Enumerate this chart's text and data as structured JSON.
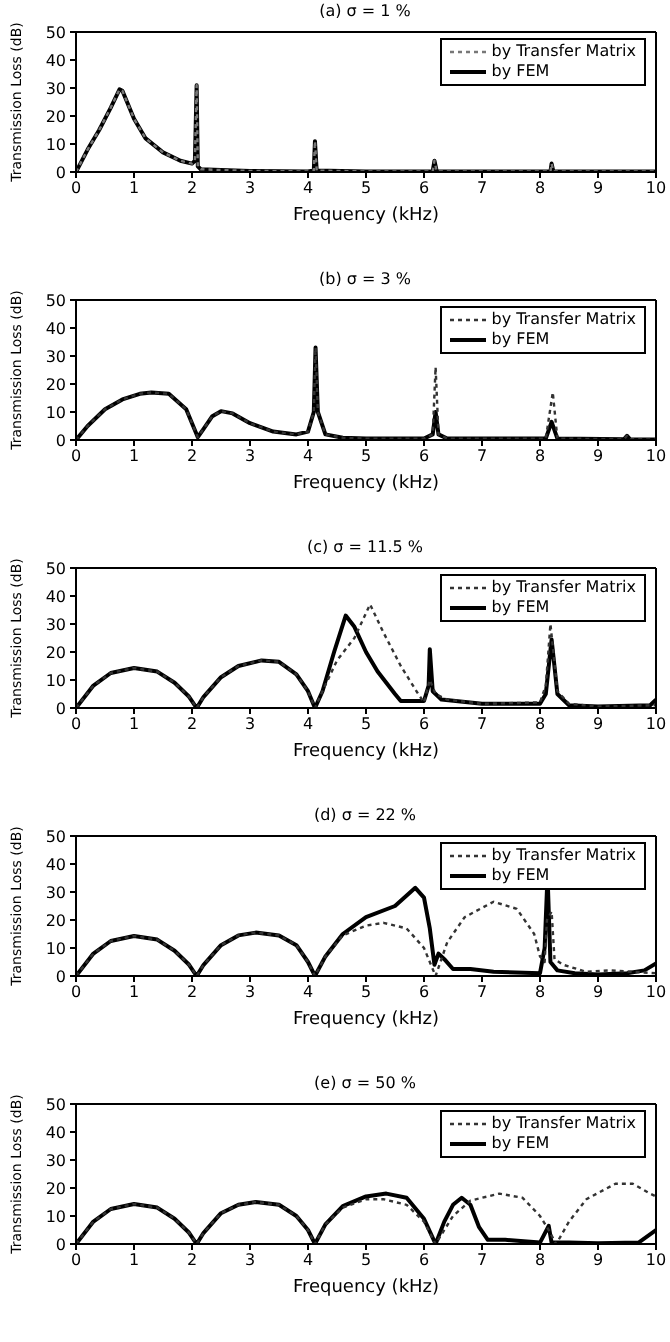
{
  "chart_data": [
    {
      "type": "line",
      "title": "(a) σ = 1 %",
      "xlabel": "Frequency (kHz)",
      "ylabel": "Transmission Loss (dB)",
      "xlim": [
        0,
        10
      ],
      "xticks": [
        0,
        1,
        2,
        3,
        4,
        5,
        6,
        7,
        8,
        9,
        10
      ],
      "ylim": [
        0,
        50
      ],
      "yticks": [
        0,
        10,
        20,
        30,
        40,
        50
      ],
      "legend": "top right",
      "series": [
        {
          "name": "by Transfer Matrix",
          "color": "#777777",
          "line_style": "dotted",
          "x": [
            0,
            0.2,
            0.4,
            0.6,
            0.75,
            0.8,
            1.0,
            1.2,
            1.5,
            1.8,
            2.0,
            2.05,
            2.08,
            2.1,
            2.15,
            2.5,
            3,
            4,
            4.1,
            4.12,
            4.15,
            5,
            6.15,
            6.18,
            6.22,
            8.18,
            8.2,
            8.23,
            10
          ],
          "values": [
            0,
            8,
            15,
            23,
            29.5,
            29,
            19,
            12,
            7,
            4,
            3,
            4,
            31,
            2,
            1,
            0.7,
            0.4,
            0.2,
            0.5,
            11,
            0.5,
            0.2,
            0.2,
            4,
            0.2,
            0.2,
            3,
            0.2,
            0.2
          ]
        },
        {
          "name": "by FEM",
          "color": "#000000",
          "line_style": "solid",
          "x": [
            0,
            0.2,
            0.4,
            0.6,
            0.75,
            0.8,
            1.0,
            1.2,
            1.5,
            1.8,
            2.0,
            2.05,
            2.08,
            2.1,
            2.15,
            2.5,
            3,
            4,
            4.1,
            4.12,
            4.15,
            5,
            6.15,
            6.18,
            6.22,
            8.18,
            8.2,
            8.23,
            10
          ],
          "values": [
            0,
            8,
            15,
            23,
            29.5,
            29,
            19,
            12,
            7,
            4,
            3,
            4,
            31,
            2,
            1,
            0.7,
            0.4,
            0.2,
            0.5,
            11,
            0.5,
            0.2,
            0.2,
            4,
            0.2,
            0.2,
            3,
            0.2,
            0.2
          ]
        }
      ]
    },
    {
      "type": "line",
      "title": "(b) σ = 3 %",
      "xlabel": "Frequency (kHz)",
      "ylabel": "Transmission Loss (dB)",
      "xlim": [
        0,
        10
      ],
      "xticks": [
        0,
        1,
        2,
        3,
        4,
        5,
        6,
        7,
        8,
        9,
        10
      ],
      "ylim": [
        0,
        50
      ],
      "yticks": [
        0,
        10,
        20,
        30,
        40,
        50
      ],
      "legend": "top right",
      "series": [
        {
          "name": "by Transfer Matrix",
          "color": "#333333",
          "line_style": "dotted",
          "x": [
            0,
            0.2,
            0.5,
            0.8,
            1.1,
            1.3,
            1.6,
            1.9,
            2.0,
            2.1,
            2.2,
            2.35,
            2.5,
            2.7,
            3.0,
            3.4,
            3.8,
            4.0,
            4.1,
            4.13,
            4.17,
            4.3,
            4.6,
            5,
            6,
            6.15,
            6.2,
            6.25,
            6.4,
            8.1,
            8.22,
            8.3,
            9.45,
            9.5,
            9.55,
            10
          ],
          "values": [
            0,
            5,
            11,
            14.5,
            16.5,
            17,
            16.5,
            11,
            6,
            1,
            4,
            8.5,
            10.3,
            9.5,
            6,
            3,
            2,
            3,
            10,
            33,
            10,
            2,
            0.8,
            0.5,
            0.5,
            2,
            26,
            2,
            0.5,
            0.5,
            17,
            0.5,
            0.3,
            1.5,
            0.3,
            0.2
          ]
        },
        {
          "name": "by FEM",
          "color": "#000000",
          "line_style": "solid",
          "x": [
            0,
            0.2,
            0.5,
            0.8,
            1.1,
            1.3,
            1.6,
            1.9,
            2.0,
            2.1,
            2.2,
            2.35,
            2.5,
            2.7,
            3.0,
            3.4,
            3.8,
            4.0,
            4.1,
            4.13,
            4.17,
            4.3,
            4.6,
            5,
            6,
            6.15,
            6.2,
            6.25,
            6.4,
            8.1,
            8.2,
            8.3,
            9.45,
            9.5,
            9.55,
            10
          ],
          "values": [
            0,
            5,
            11,
            14.5,
            16.5,
            17,
            16.5,
            11,
            6,
            1,
            4,
            8.5,
            10.3,
            9.5,
            6,
            3,
            2,
            3,
            10,
            33,
            10,
            2,
            0.8,
            0.5,
            0.5,
            2,
            10,
            2,
            0.5,
            0.5,
            6.5,
            0.5,
            0.3,
            1.5,
            0.3,
            0.2
          ]
        }
      ]
    },
    {
      "type": "line",
      "title": "(c) σ = 11.5  %",
      "xlabel": "Frequency (kHz)",
      "ylabel": "Transmission Loss (dB)",
      "xlim": [
        0,
        10
      ],
      "xticks": [
        0,
        1,
        2,
        3,
        4,
        5,
        6,
        7,
        8,
        9,
        10
      ],
      "ylim": [
        0,
        50
      ],
      "yticks": [
        0,
        10,
        20,
        30,
        40,
        50
      ],
      "legend": "top right",
      "series": [
        {
          "name": "by Transfer Matrix",
          "color": "#333333",
          "line_style": "dotted",
          "x": [
            0,
            0.3,
            0.6,
            1.0,
            1.4,
            1.7,
            1.95,
            2.08,
            2.2,
            2.5,
            2.8,
            3.2,
            3.5,
            3.8,
            4.0,
            4.12,
            4.25,
            4.5,
            4.8,
            5.07,
            5.3,
            5.6,
            5.9,
            6.0,
            6.1,
            6.2,
            6.4,
            7,
            8.0,
            8.1,
            8.18,
            8.3,
            8.5,
            9,
            10
          ],
          "values": [
            0,
            8,
            12.5,
            14.3,
            13,
            9,
            4,
            0,
            4,
            11,
            15,
            17,
            16.5,
            12,
            6,
            0,
            6,
            17,
            25,
            37,
            27,
            15,
            5,
            2,
            10,
            5,
            3,
            1.5,
            2,
            8,
            30,
            6,
            1.5,
            0.5,
            1
          ]
        },
        {
          "name": "by FEM",
          "color": "#000000",
          "line_style": "solid",
          "x": [
            0,
            0.3,
            0.6,
            1.0,
            1.4,
            1.7,
            1.95,
            2.08,
            2.2,
            2.5,
            2.8,
            3.2,
            3.5,
            3.8,
            4.0,
            4.12,
            4.25,
            4.45,
            4.65,
            4.8,
            5.0,
            5.2,
            5.5,
            5.6,
            6.0,
            6.08,
            6.1,
            6.15,
            6.3,
            7,
            8.0,
            8.1,
            8.2,
            8.3,
            8.5,
            9,
            9.9,
            10
          ],
          "values": [
            0,
            8,
            12.5,
            14.3,
            13,
            9,
            4,
            0,
            4,
            11,
            15,
            17,
            16.5,
            12,
            6,
            0,
            6,
            20,
            33,
            29,
            20,
            13,
            5,
            2.5,
            2.5,
            8,
            21,
            6,
            3,
            1.5,
            1.5,
            5,
            24.5,
            5,
            1,
            0.5,
            1,
            3
          ]
        }
      ]
    },
    {
      "type": "line",
      "title": "(d) σ = 22 %",
      "xlabel": "Frequency (kHz)",
      "ylabel": "Transmission Loss (dB)",
      "xlim": [
        0,
        10
      ],
      "xticks": [
        0,
        1,
        2,
        3,
        4,
        5,
        6,
        7,
        8,
        9,
        10
      ],
      "ylim": [
        0,
        50
      ],
      "yticks": [
        0,
        10,
        20,
        30,
        40,
        50
      ],
      "legend": "top right",
      "series": [
        {
          "name": "by Transfer Matrix",
          "color": "#333333",
          "line_style": "dotted",
          "x": [
            0,
            0.3,
            0.6,
            1.0,
            1.4,
            1.7,
            1.95,
            2.08,
            2.2,
            2.5,
            2.8,
            3.1,
            3.5,
            3.8,
            4.0,
            4.12,
            4.3,
            4.6,
            5.0,
            5.3,
            5.7,
            6.0,
            6.2,
            6.4,
            6.7,
            7.2,
            7.6,
            7.9,
            8.0,
            8.08,
            8.12,
            8.2,
            8.25,
            8.4,
            8.8,
            9.2,
            9.6,
            10
          ],
          "values": [
            0,
            8,
            12.5,
            14.3,
            13,
            9,
            4,
            0,
            4,
            11,
            14.5,
            15.5,
            14.5,
            11,
            5,
            0,
            7,
            14.5,
            18,
            19,
            17,
            10,
            0,
            12,
            21,
            26.5,
            24,
            15,
            7,
            5,
            20,
            23,
            6,
            4,
            1.5,
            2,
            1.5,
            1
          ]
        },
        {
          "name": "by FEM",
          "color": "#000000",
          "line_style": "solid",
          "x": [
            0,
            0.3,
            0.6,
            1.0,
            1.4,
            1.7,
            1.95,
            2.08,
            2.2,
            2.5,
            2.8,
            3.1,
            3.5,
            3.8,
            4.0,
            4.12,
            4.3,
            4.6,
            5.0,
            5.5,
            5.85,
            6.0,
            6.1,
            6.18,
            6.25,
            6.35,
            6.5,
            6.8,
            7.2,
            8.0,
            8.08,
            8.13,
            8.18,
            8.3,
            8.6,
            9.0,
            9.5,
            9.8,
            10
          ],
          "values": [
            0,
            8,
            12.5,
            14.3,
            13,
            9,
            4,
            0,
            4,
            11,
            14.5,
            15.5,
            14.5,
            11,
            5,
            0,
            7,
            15,
            21,
            25,
            31.5,
            28,
            17,
            4,
            8,
            6,
            2.5,
            2.5,
            1.5,
            1,
            10,
            36,
            5,
            2,
            1,
            0.5,
            1,
            2,
            4.5
          ]
        }
      ]
    },
    {
      "type": "line",
      "title": "(e) σ = 50  %",
      "xlabel": "Frequency (kHz)",
      "ylabel": "Transmission Loss (dB)",
      "xlim": [
        0,
        10
      ],
      "xticks": [
        0,
        1,
        2,
        3,
        4,
        5,
        6,
        7,
        8,
        9,
        10
      ],
      "ylim": [
        0,
        50
      ],
      "yticks": [
        0,
        10,
        20,
        30,
        40,
        50
      ],
      "legend": "top right",
      "series": [
        {
          "name": "by Transfer Matrix",
          "color": "#333333",
          "line_style": "dotted",
          "x": [
            0,
            0.3,
            0.6,
            1.0,
            1.4,
            1.7,
            1.95,
            2.08,
            2.2,
            2.5,
            2.8,
            3.1,
            3.5,
            3.8,
            4.0,
            4.12,
            4.3,
            4.6,
            5.0,
            5.3,
            5.7,
            6.0,
            6.2,
            6.5,
            6.8,
            7.3,
            7.7,
            8.0,
            8.15,
            8.28,
            8.5,
            8.8,
            9.3,
            9.6,
            9.9,
            10
          ],
          "values": [
            0,
            8,
            12.5,
            14.3,
            13,
            9,
            4,
            0,
            4,
            11,
            14,
            15,
            14,
            10,
            5,
            0,
            7,
            13,
            16,
            16,
            14,
            8,
            0,
            10,
            15.5,
            18,
            16.5,
            10,
            5,
            0,
            8,
            16,
            21.5,
            21.5,
            18,
            17
          ]
        },
        {
          "name": "by FEM",
          "color": "#000000",
          "line_style": "solid",
          "x": [
            0,
            0.3,
            0.6,
            1.0,
            1.4,
            1.7,
            1.95,
            2.08,
            2.2,
            2.5,
            2.8,
            3.1,
            3.5,
            3.8,
            4.0,
            4.12,
            4.3,
            4.6,
            5.0,
            5.35,
            5.7,
            6.0,
            6.2,
            6.35,
            6.5,
            6.65,
            6.8,
            6.95,
            7.1,
            7.4,
            8.0,
            8.15,
            8.2,
            8.5,
            9,
            9.7,
            10
          ],
          "values": [
            0,
            8,
            12.5,
            14.3,
            13,
            9,
            4,
            0,
            4,
            11,
            14,
            15,
            14,
            10,
            5,
            0,
            7,
            13.5,
            17,
            18,
            16.5,
            9,
            0,
            8,
            14,
            16.5,
            14,
            6,
            1.5,
            1.5,
            0.5,
            6.5,
            0.5,
            0.5,
            0.3,
            0.5,
            5
          ]
        }
      ]
    }
  ]
}
